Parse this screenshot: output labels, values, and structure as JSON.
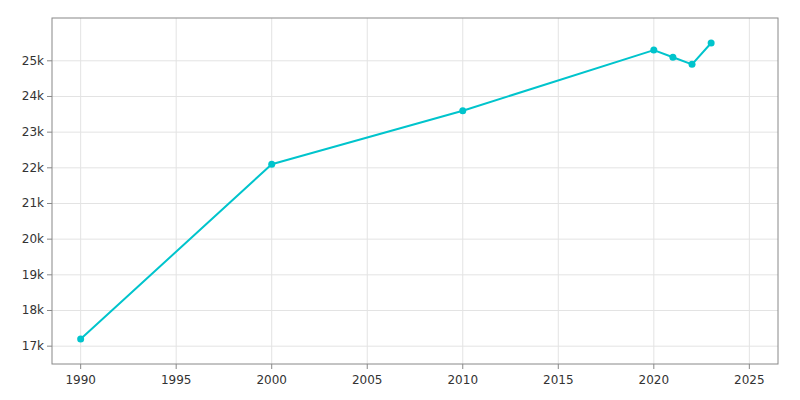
{
  "chart_data": {
    "type": "line",
    "x": [
      1990,
      2000,
      2010,
      2020,
      2021,
      2022,
      2023
    ],
    "values": [
      17200,
      22100,
      23600,
      25300,
      25100,
      24900,
      25500
    ],
    "color": "#00C4CC",
    "marker": "circle",
    "xlim": [
      1988.5,
      2026.5
    ],
    "ylim": [
      16500,
      26200
    ],
    "xticks": [
      1990,
      1995,
      2000,
      2005,
      2010,
      2015,
      2020,
      2025
    ],
    "yticks": [
      {
        "value": 17000,
        "label": "17k"
      },
      {
        "value": 18000,
        "label": "18k"
      },
      {
        "value": 19000,
        "label": "19k"
      },
      {
        "value": 20000,
        "label": "20k"
      },
      {
        "value": 21000,
        "label": "21k"
      },
      {
        "value": 22000,
        "label": "22k"
      },
      {
        "value": 23000,
        "label": "23k"
      },
      {
        "value": 24000,
        "label": "24k"
      },
      {
        "value": 25000,
        "label": "25k"
      }
    ],
    "grid": true
  }
}
